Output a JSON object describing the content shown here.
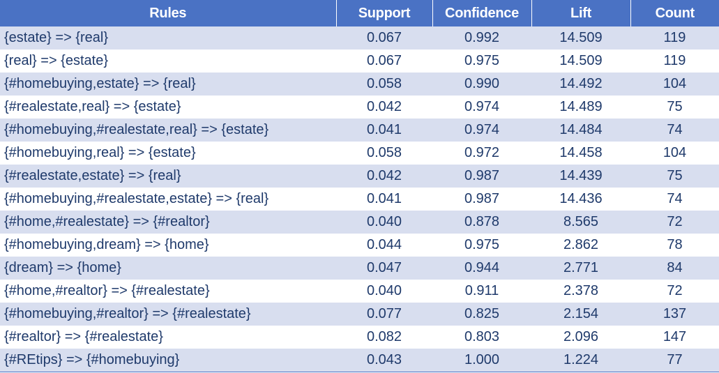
{
  "table": {
    "headers": [
      "Rules",
      "Support",
      "Confidence",
      "Lift",
      "Count"
    ],
    "rows": [
      [
        "{estate} => {real}",
        "0.067",
        "0.992",
        "14.509",
        "119"
      ],
      [
        "{real} => {estate}",
        "0.067",
        "0.975",
        "14.509",
        "119"
      ],
      [
        "{#homebuying,estate} => {real}",
        "0.058",
        "0.990",
        "14.492",
        "104"
      ],
      [
        "{#realestate,real} => {estate}",
        "0.042",
        "0.974",
        "14.489",
        "75"
      ],
      [
        "{#homebuying,#realestate,real} => {estate}",
        "0.041",
        "0.974",
        "14.484",
        "74"
      ],
      [
        "{#homebuying,real} => {estate}",
        "0.058",
        "0.972",
        "14.458",
        "104"
      ],
      [
        "{#realestate,estate} => {real}",
        "0.042",
        "0.987",
        "14.439",
        "75"
      ],
      [
        "{#homebuying,#realestate,estate} => {real}",
        "0.041",
        "0.987",
        "14.436",
        "74"
      ],
      [
        "{#home,#realestate} => {#realtor}",
        "0.040",
        "0.878",
        "8.565",
        "72"
      ],
      [
        "{#homebuying,dream} => {home}",
        "0.044",
        "0.975",
        "2.862",
        "78"
      ],
      [
        "{dream} => {home}",
        "0.047",
        "0.944",
        "2.771",
        "84"
      ],
      [
        "{#home,#realtor} => {#realestate}",
        "0.040",
        "0.911",
        "2.378",
        "72"
      ],
      [
        "{#homebuying,#realtor} => {#realestate}",
        "0.077",
        "0.825",
        "2.154",
        "137"
      ],
      [
        "{#realtor} => {#realestate}",
        "0.082",
        "0.803",
        "2.096",
        "147"
      ],
      [
        "{#REtips} => {#homebuying}",
        "0.043",
        "1.000",
        "1.224",
        "77"
      ]
    ]
  },
  "colors": {
    "header_bg": "#4a72c4",
    "header_text": "#ffffff",
    "band_bg": "#d8deef",
    "body_text": "#1f3a6b"
  }
}
